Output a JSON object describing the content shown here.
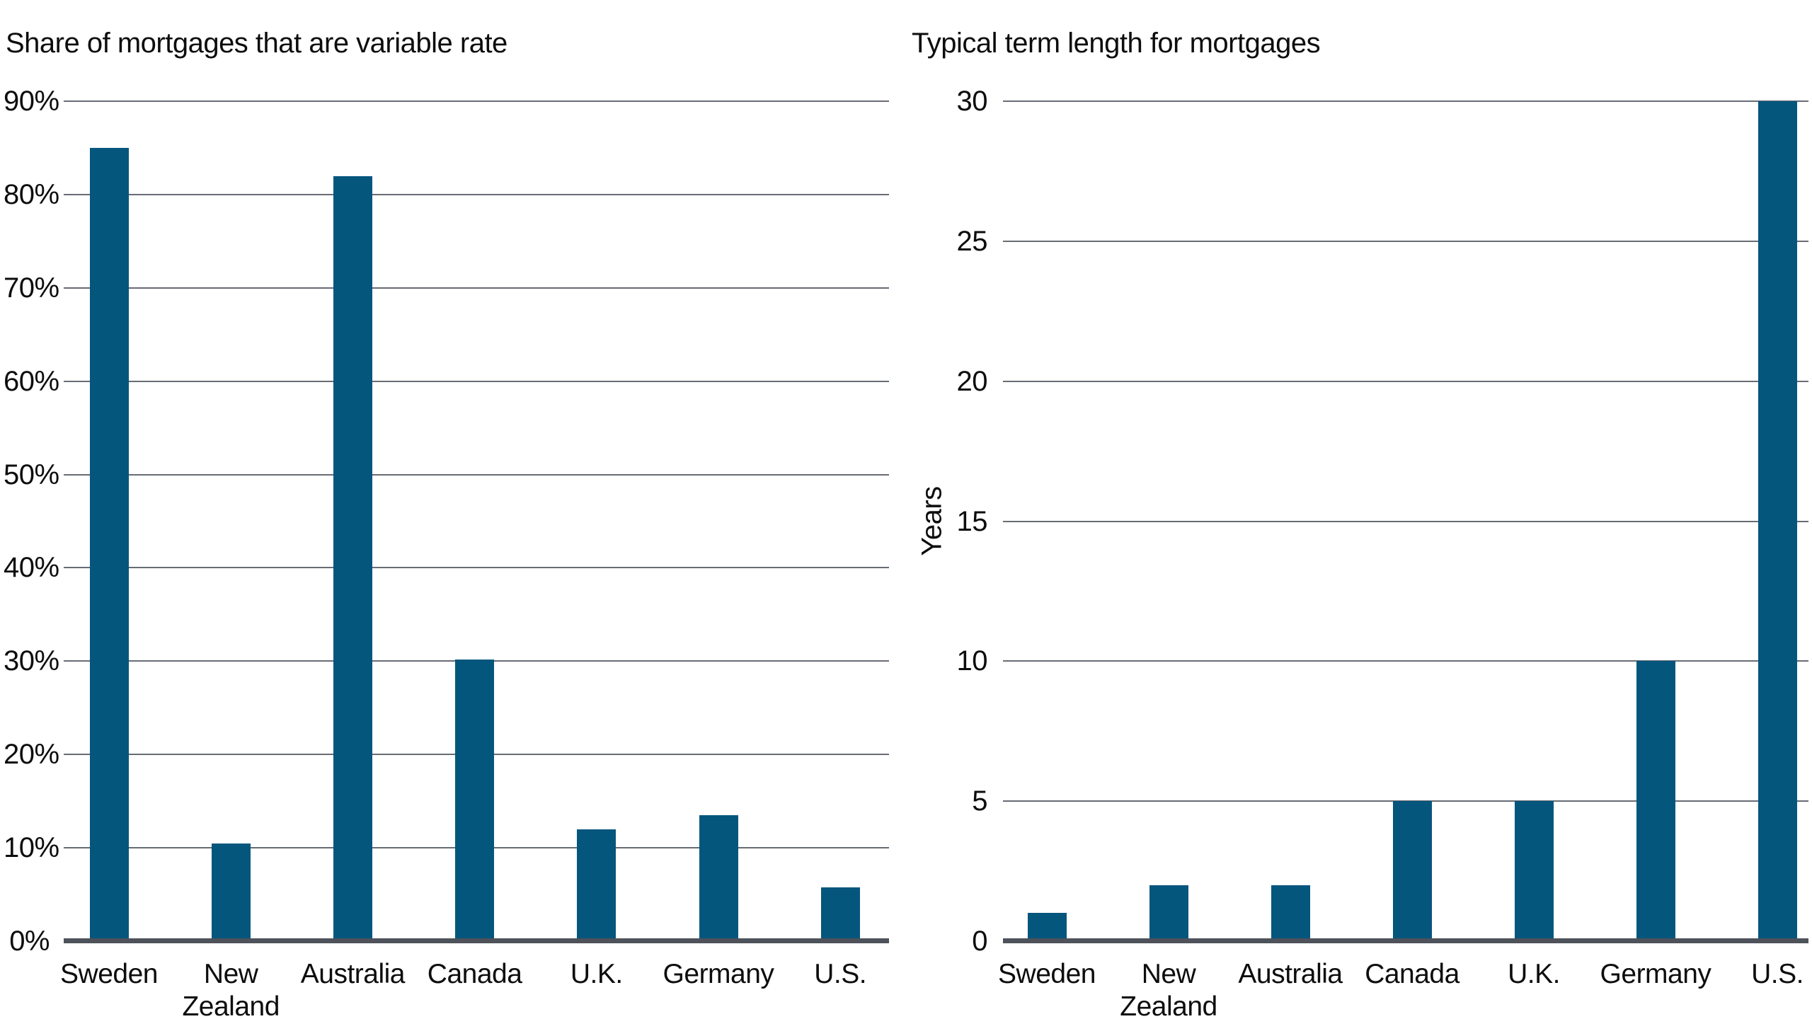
{
  "page": {
    "background": "#ffffff"
  },
  "colors": {
    "bar": "#05567d",
    "gridline": "#676c74",
    "baseline": "#4e525a",
    "text": "#0d0d0d"
  },
  "chart_data": [
    {
      "id": "variable-rate-share",
      "type": "bar",
      "title": "Share of mortgages that are variable rate",
      "categories": [
        "Sweden",
        "New Zealand",
        "Australia",
        "Canada",
        "U.K.",
        "Germany",
        "U.S."
      ],
      "values": [
        85,
        10.5,
        82,
        30.2,
        12,
        13.5,
        5.8
      ],
      "unit": "%",
      "xlabel": "",
      "ylabel": "",
      "ylim": [
        0,
        90
      ],
      "ytick_step": 10,
      "ytick_labels": [
        "0%",
        "10%",
        "20%",
        "30%",
        "40%",
        "50%",
        "60%",
        "70%",
        "80%",
        "90%"
      ],
      "grid": true,
      "legend": "none",
      "bar_color": "#05567d"
    },
    {
      "id": "typical-term-length",
      "type": "bar",
      "title": "Typical term length for mortgages",
      "categories": [
        "Sweden",
        "New Zealand",
        "Australia",
        "Canada",
        "U.K.",
        "Germany",
        "U.S."
      ],
      "values": [
        1,
        2,
        2,
        5,
        5,
        10,
        30
      ],
      "unit": "years",
      "xlabel": "",
      "ylabel": "Years",
      "ylim": [
        0,
        30
      ],
      "ytick_step": 5,
      "ytick_labels": [
        "0",
        "5",
        "10",
        "15",
        "20",
        "25",
        "30"
      ],
      "grid": true,
      "legend": "none",
      "bar_color": "#05567d"
    }
  ]
}
